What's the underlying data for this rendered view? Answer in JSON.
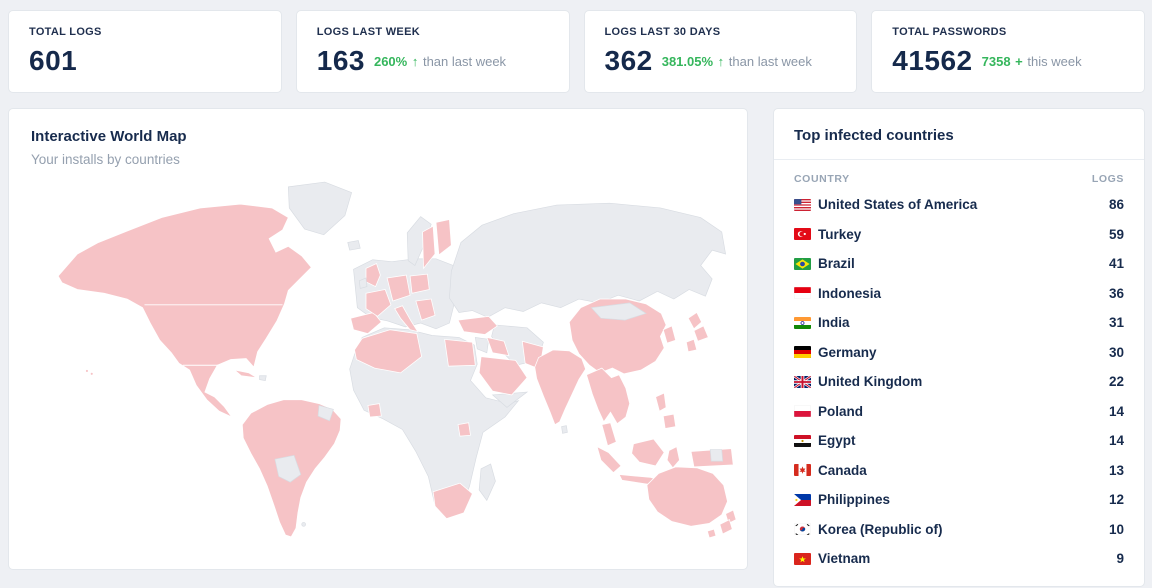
{
  "colors": {
    "page-bg": "#eef0f4",
    "card-bg": "#ffffff",
    "card-border": "#e3e7ec",
    "heading": "#172b4d",
    "muted": "#95a0af",
    "green": "#35b65c",
    "map-hl": "#f6c3c6",
    "map-base": "#e9ebef",
    "map-stroke": "#ffffff",
    "divider": "#e9edf2"
  },
  "stats": [
    {
      "label": "TOTAL LOGS",
      "value": "601",
      "delta": null
    },
    {
      "label": "LOGS LAST WEEK",
      "value": "163",
      "delta": {
        "value": "260%",
        "icon": "arrow-up",
        "suffix": "than last week"
      }
    },
    {
      "label": "LOGS LAST 30 DAYS",
      "value": "362",
      "delta": {
        "value": "381.05%",
        "icon": "arrow-up",
        "suffix": "than last week"
      }
    },
    {
      "label": "TOTAL PASSWORDS",
      "value": "41562",
      "delta": {
        "value": "7358",
        "icon": "plus",
        "suffix": "this week"
      }
    }
  ],
  "map_panel": {
    "title": "Interactive World Map",
    "subtitle": "Your installs by countries",
    "highlighted_regions": [
      "Canada",
      "United States",
      "Mexico",
      "Cuba",
      "Colombia",
      "Peru",
      "Brazil",
      "Chile",
      "Argentina",
      "United Kingdom",
      "Spain",
      "Portugal",
      "France",
      "Germany",
      "Poland",
      "Italy",
      "Balkans",
      "Sweden",
      "Finland",
      "Morocco",
      "Algeria",
      "Egypt",
      "Ivory Coast",
      "Uganda",
      "South Africa",
      "Turkey",
      "Iraq",
      "Saudi Arabia",
      "Pakistan",
      "India",
      "China",
      "Thailand",
      "Vietnam",
      "Malaysia",
      "Indonesia",
      "Philippines",
      "South Korea",
      "Japan",
      "Papua New Guinea",
      "Australia",
      "New Zealand"
    ]
  },
  "countries_panel": {
    "title": "Top infected countries",
    "columns": [
      "COUNTRY",
      "LOGS"
    ],
    "rows": [
      {
        "flag": "us-flag",
        "name": "United States of America",
        "logs": 86
      },
      {
        "flag": "tr-flag",
        "name": "Turkey",
        "logs": 59
      },
      {
        "flag": "br-flag",
        "name": "Brazil",
        "logs": 41
      },
      {
        "flag": "id-flag",
        "name": "Indonesia",
        "logs": 36
      },
      {
        "flag": "in-flag",
        "name": "India",
        "logs": 31
      },
      {
        "flag": "de-flag",
        "name": "Germany",
        "logs": 30
      },
      {
        "flag": "gb-flag",
        "name": "United Kingdom",
        "logs": 22
      },
      {
        "flag": "pl-flag",
        "name": "Poland",
        "logs": 14
      },
      {
        "flag": "eg-flag",
        "name": "Egypt",
        "logs": 14
      },
      {
        "flag": "ca-flag",
        "name": "Canada",
        "logs": 13
      },
      {
        "flag": "ph-flag",
        "name": "Philippines",
        "logs": 12
      },
      {
        "flag": "kr-flag",
        "name": "Korea (Republic of)",
        "logs": 10
      },
      {
        "flag": "vn-flag",
        "name": "Vietnam",
        "logs": 9
      }
    ]
  }
}
